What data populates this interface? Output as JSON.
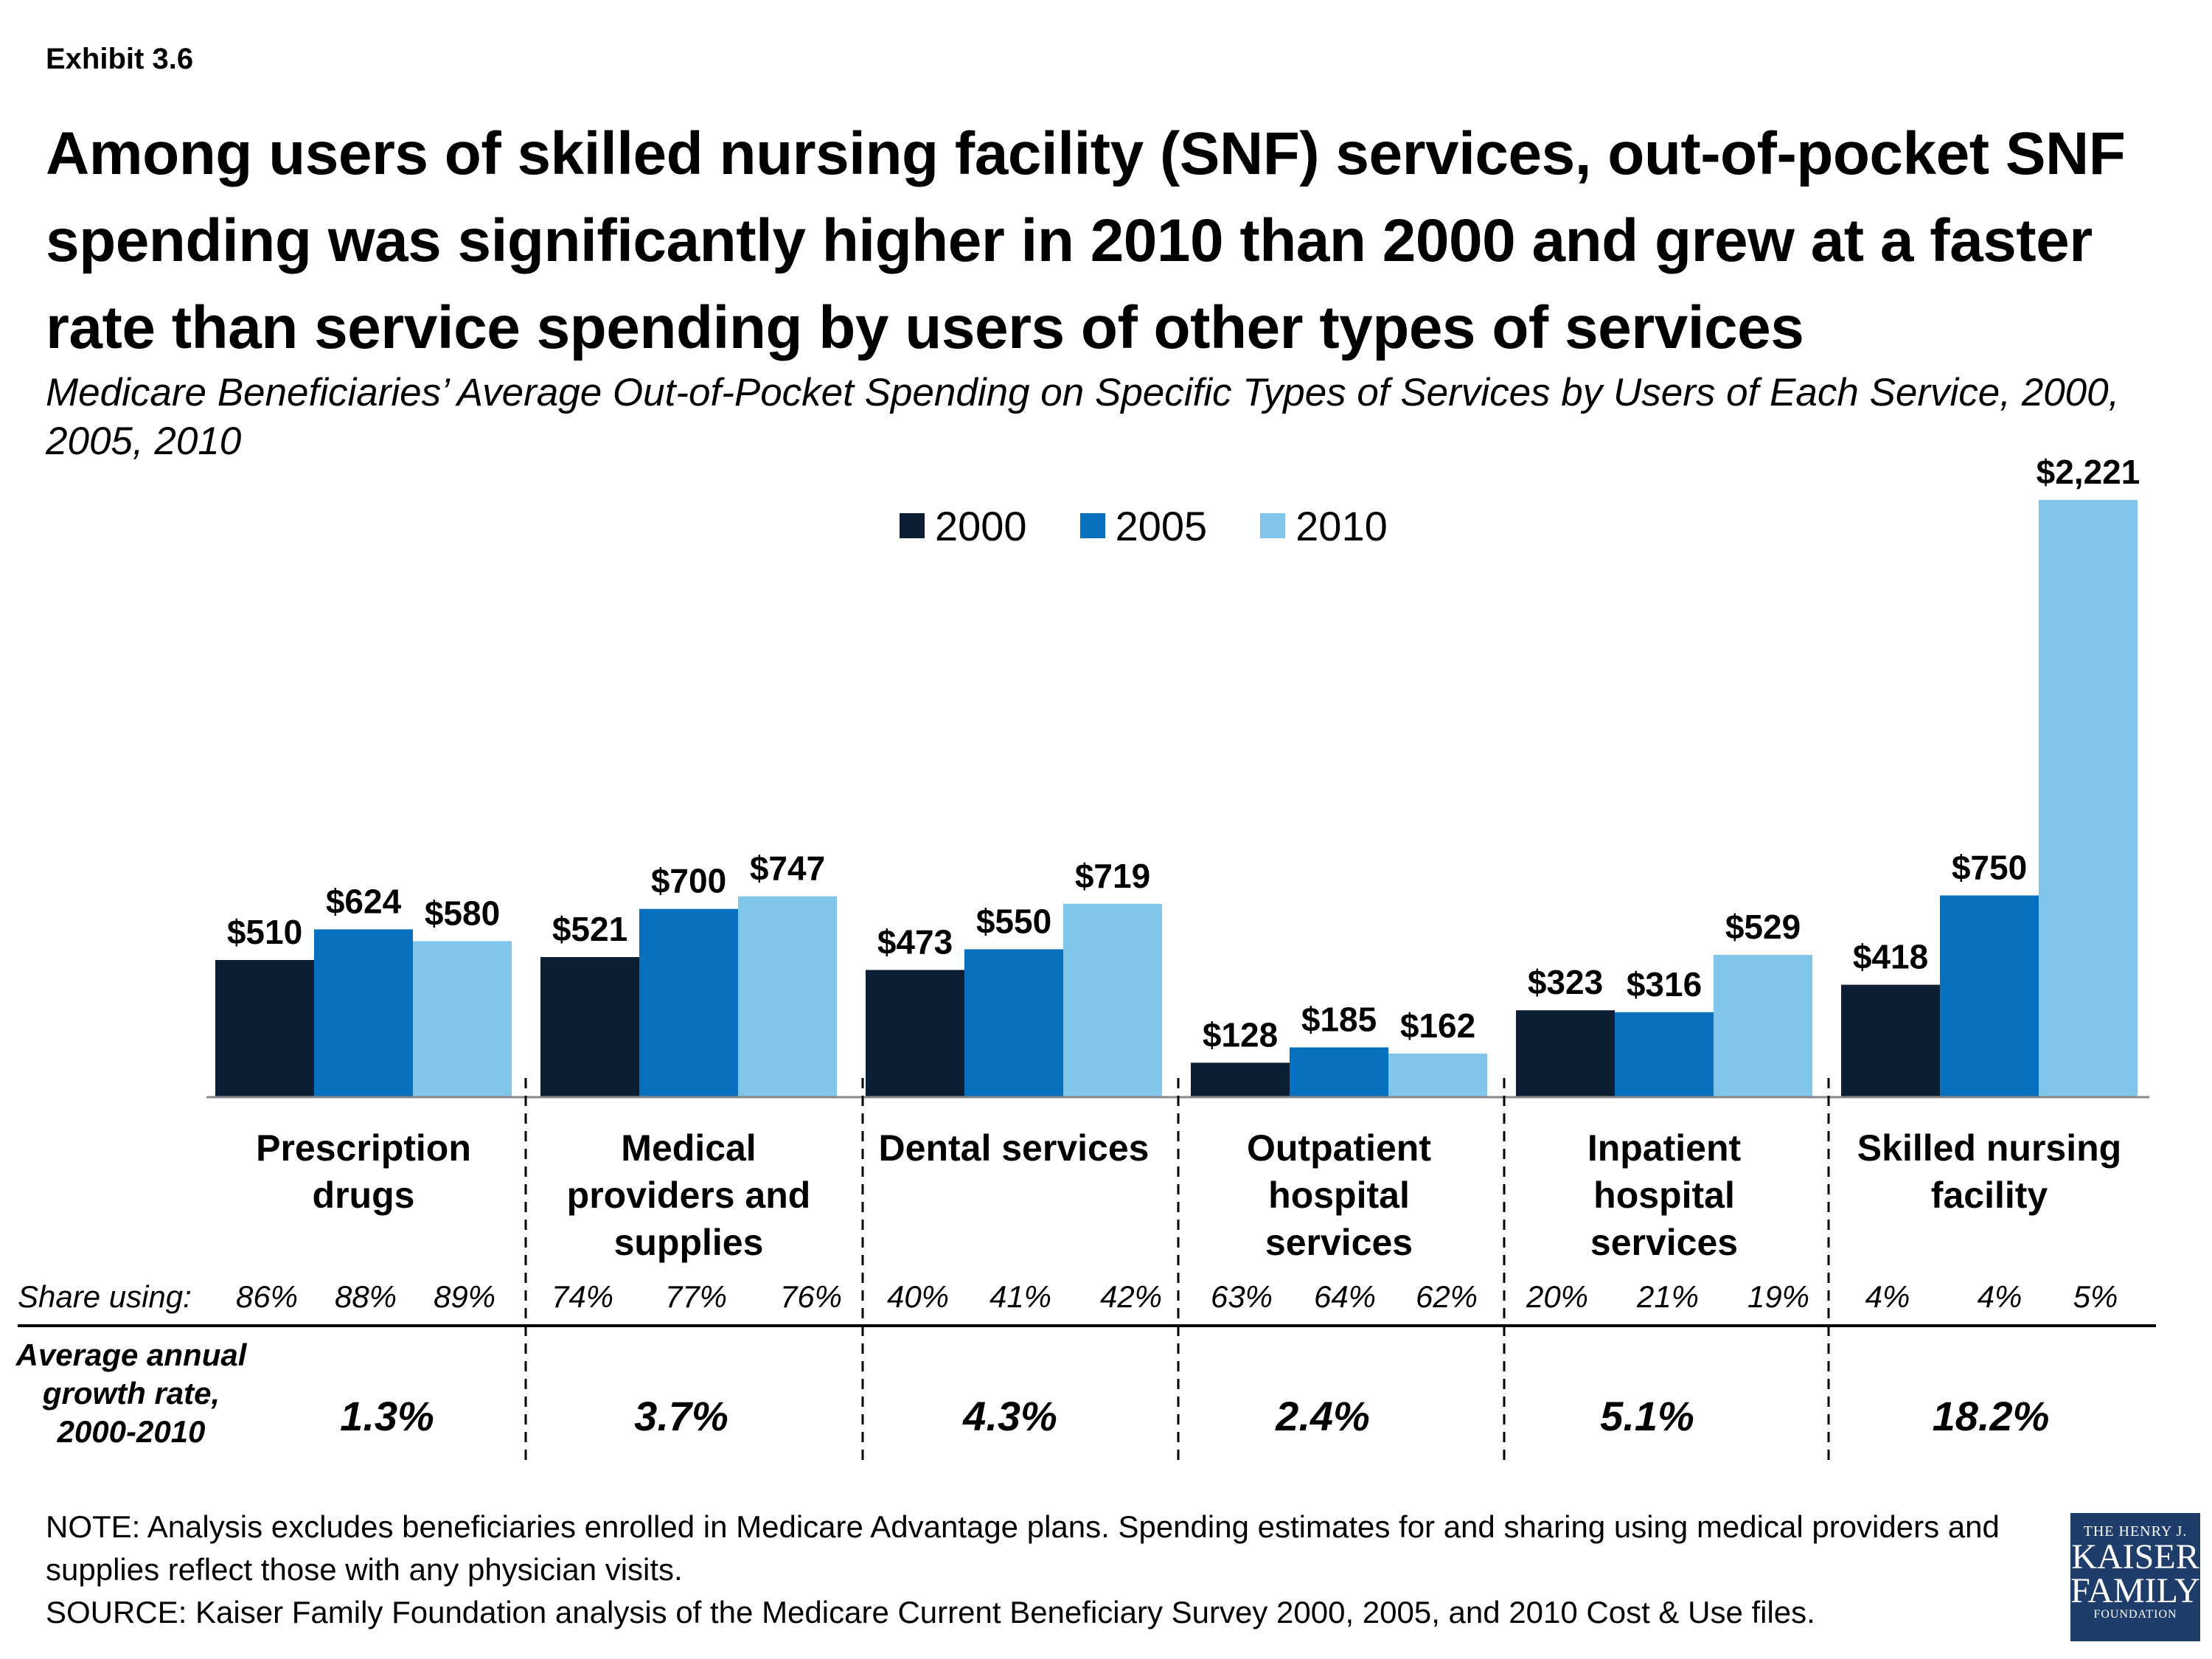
{
  "exhibit": "Exhibit 3.6",
  "title": "Among users of skilled nursing facility (SNF) services, out-of-pocket SNF spending was significantly higher in 2010 than 2000 and grew at a faster rate than service spending by users of other types of services",
  "subtitle": "Medicare Beneficiaries’ Average Out-of-Pocket Spending on Specific Types of Services by Users of Each Service, 2000, 2005, 2010",
  "colors": {
    "2000": "#0c1e33",
    "2005": "#0670be",
    "2010": "#7fc6ea"
  },
  "share_label": "Share using:",
  "growth_label": "Average annual growth rate, 2000-2010",
  "chart_data": {
    "type": "bar",
    "categories": [
      "Prescription drugs",
      "Medical providers and supplies",
      "Dental services",
      "Outpatient hospital services",
      "Inpatient hospital services",
      "Skilled nursing facility"
    ],
    "series": [
      {
        "name": "2000",
        "values": [
          510,
          521,
          473,
          128,
          323,
          418
        ],
        "labels": [
          "$510",
          "$521",
          "$473",
          "$128",
          "$323",
          "$418"
        ]
      },
      {
        "name": "2005",
        "values": [
          624,
          700,
          550,
          185,
          316,
          750
        ],
        "labels": [
          "$624",
          "$700",
          "$550",
          "$185",
          "$316",
          "$750"
        ]
      },
      {
        "name": "2010",
        "values": [
          580,
          747,
          719,
          162,
          529,
          2221
        ],
        "labels": [
          "$580",
          "$747",
          "$719",
          "$162",
          "$529",
          "$2,221"
        ]
      }
    ],
    "share_using": [
      [
        "86%",
        "88%",
        "89%"
      ],
      [
        "74%",
        "77%",
        "76%"
      ],
      [
        "40%",
        "41%",
        "42%"
      ],
      [
        "63%",
        "64%",
        "62%"
      ],
      [
        "20%",
        "21%",
        "19%"
      ],
      [
        "4%",
        "4%",
        "5%"
      ]
    ],
    "growth_rate": [
      "1.3%",
      "3.7%",
      "4.3%",
      "2.4%",
      "5.1%",
      "18.2%"
    ],
    "legend_position": "top-center",
    "grid": false
  },
  "note": "NOTE: Analysis excludes beneficiaries enrolled in Medicare Advantage plans. Spending estimates for and sharing using medical providers and supplies reflect those with any physician visits.",
  "source": "SOURCE: Kaiser Family Foundation analysis of the Medicare Current Beneficiary Survey 2000, 2005, and 2010 Cost & Use files.",
  "logo": {
    "line1": "THE HENRY J.",
    "line2": "KAISER",
    "line3": "FAMILY",
    "line4": "FOUNDATION"
  }
}
